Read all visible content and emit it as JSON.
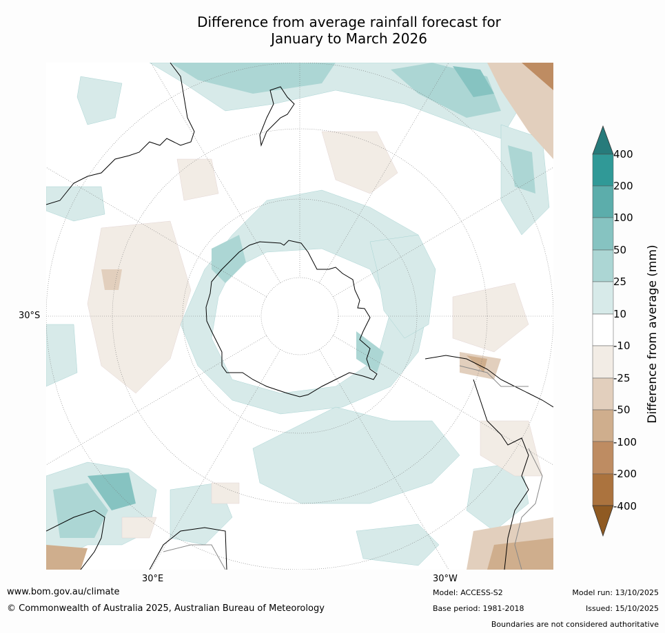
{
  "title": {
    "line1": "Difference from average rainfall forecast for",
    "line2": "January to March 2026"
  },
  "axes": {
    "lat_label": "30°S",
    "lon_label_east": "30°E",
    "lon_label_west": "30°W"
  },
  "colorbar": {
    "title": "Difference from average (mm)",
    "ticks": [
      "400",
      "200",
      "100",
      "50",
      "25",
      "10",
      "-10",
      "-25",
      "-50",
      "-100",
      "-200",
      "-400"
    ],
    "colors": {
      "over": "#277b7b",
      "c400": "#309997",
      "c200": "#5cadab",
      "c100": "#86c3c1",
      "c50": "#acd6d4",
      "c25": "#d7eae9",
      "c10": "#ffffff",
      "m10": "#f2ece5",
      "m25": "#e2cfbd",
      "m50": "#cfae8d",
      "m100": "#be8c62",
      "m200": "#ab733e",
      "under": "#8f5a22"
    }
  },
  "footer": {
    "website": "www.bom.gov.au/climate",
    "copyright": "© Commonwealth of Australia 2025, Australian Bureau of Meteorology",
    "model": "Model: ACCESS-S2",
    "base_period": "Base period: 1981-2018",
    "model_run": "Model run: 13/10/2025",
    "issued": "Issued: 15/10/2025",
    "disclaimer": "Boundaries are not considered authoritative"
  }
}
